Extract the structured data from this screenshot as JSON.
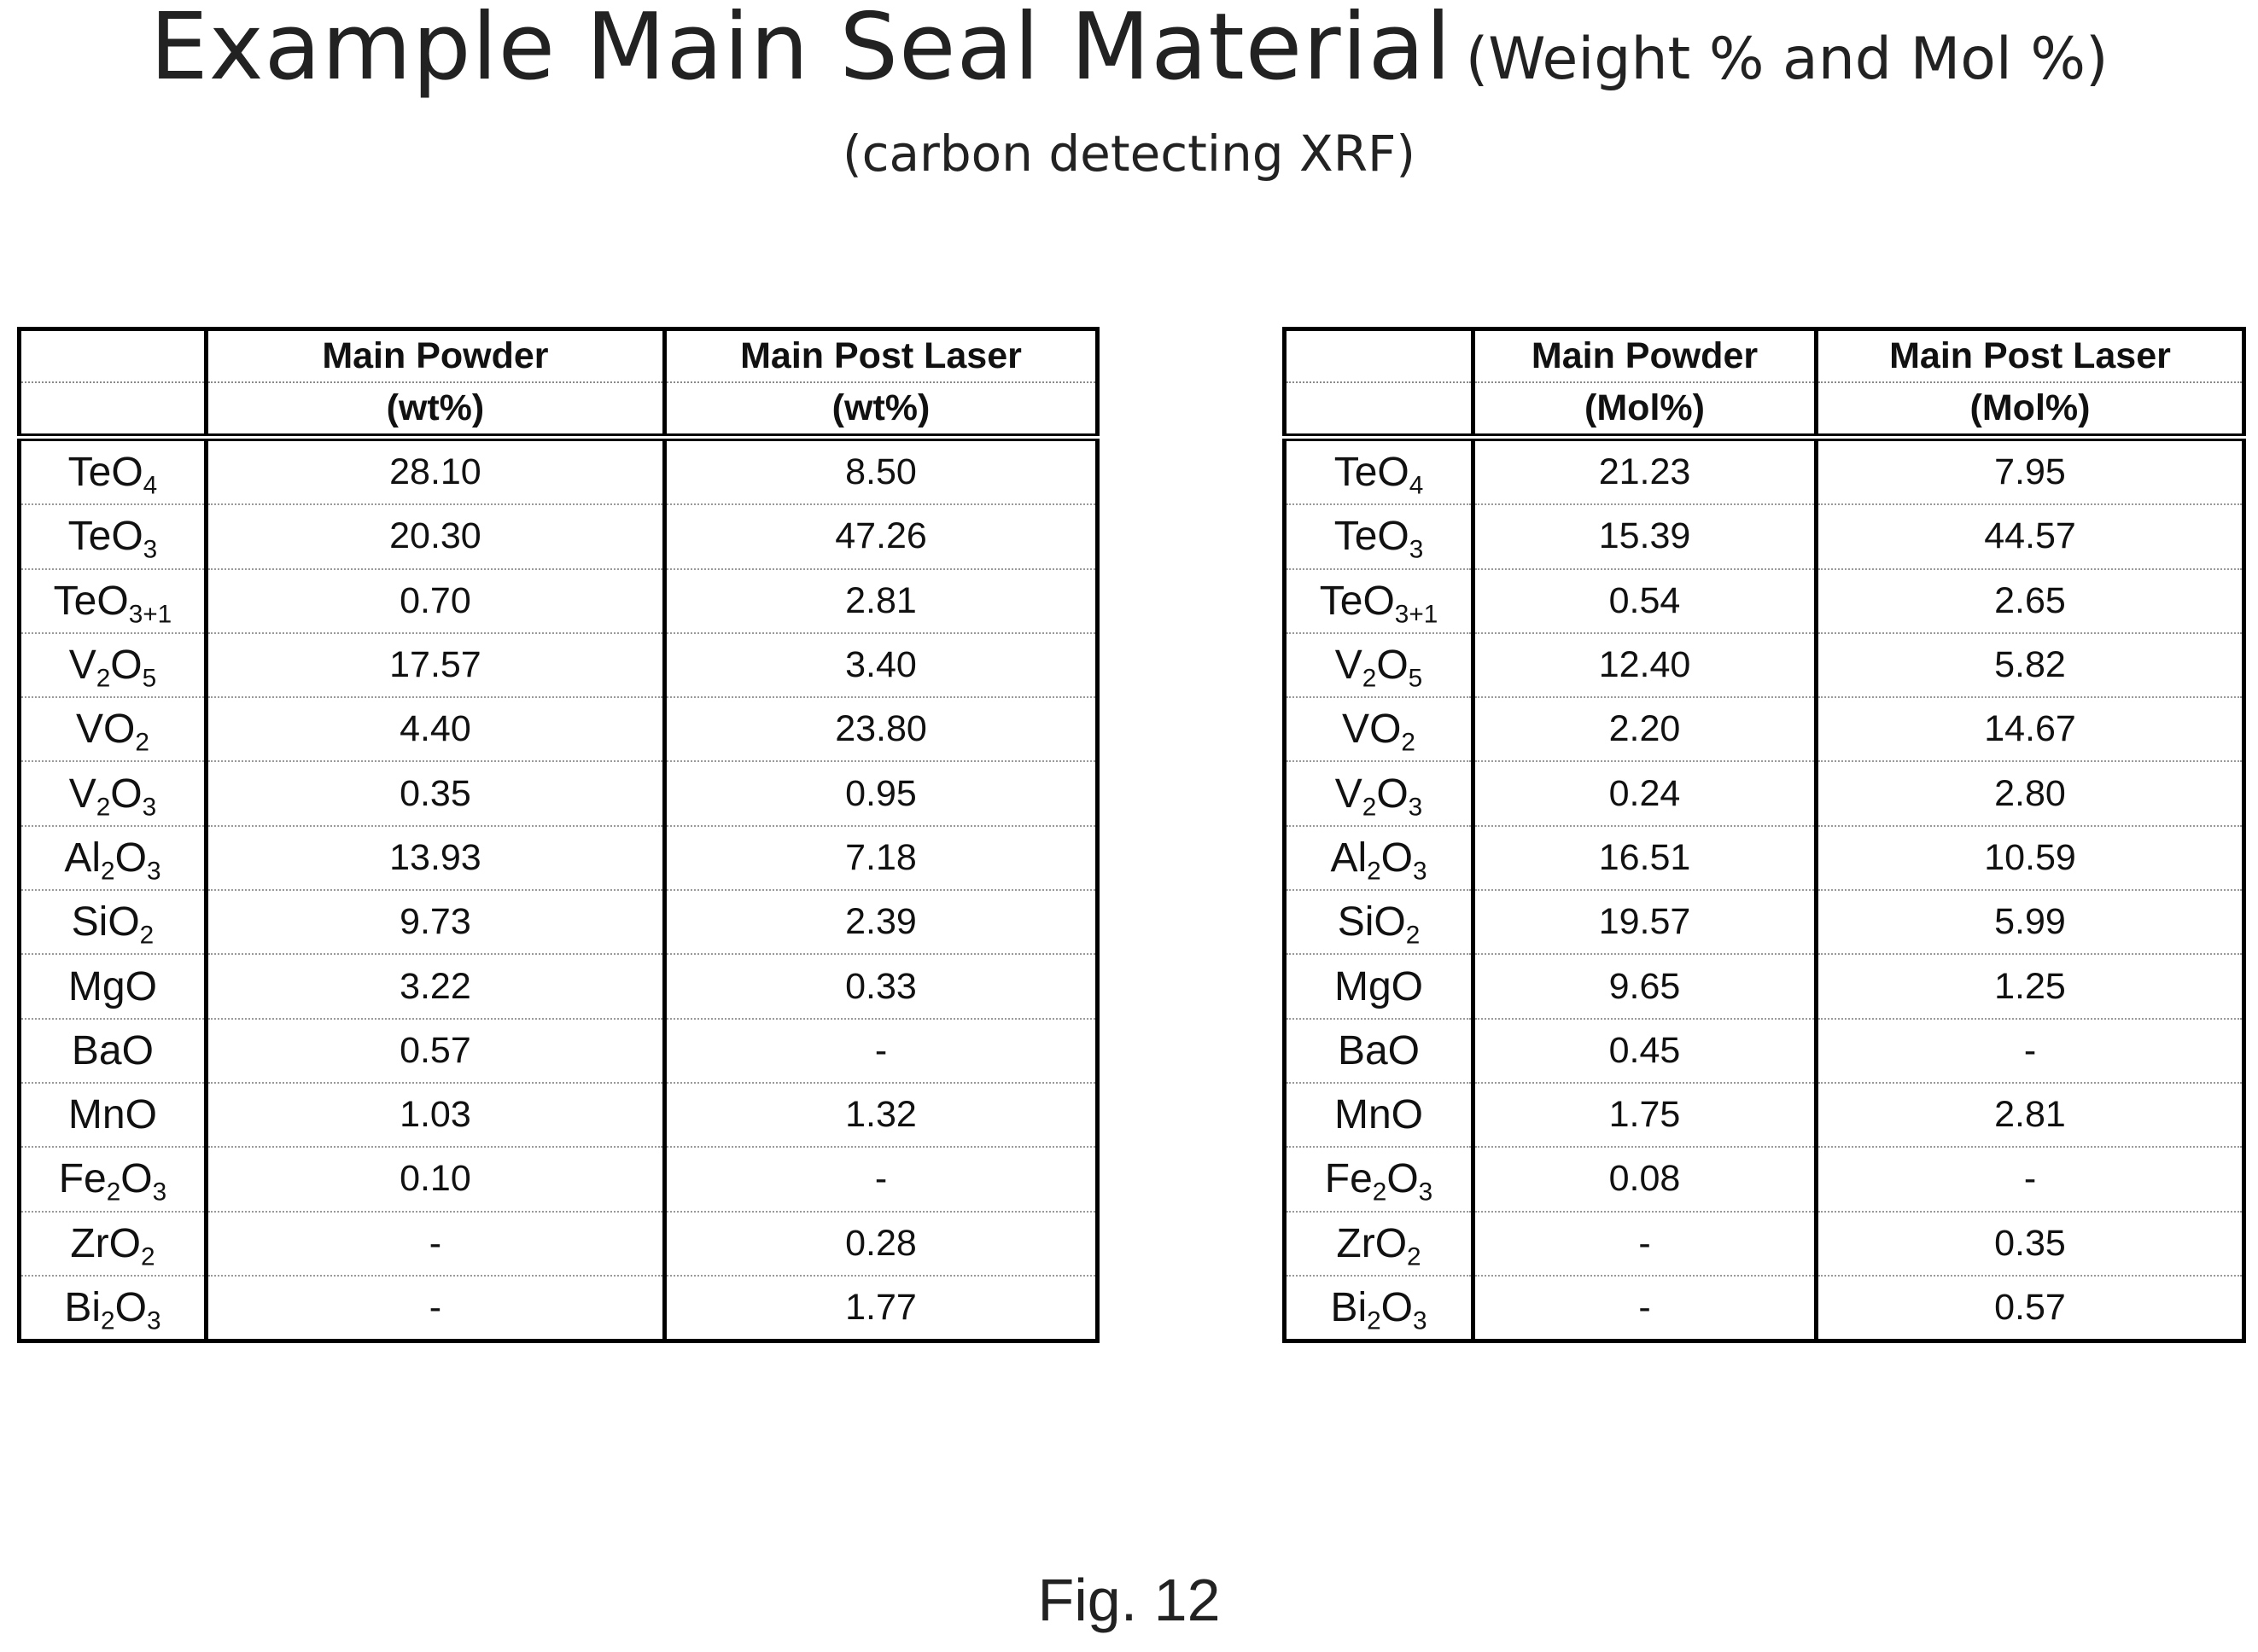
{
  "title": {
    "main": "Example Main Seal Material",
    "sub": "(Weight % and Mol %)"
  },
  "subtitle": "(carbon detecting XRF)",
  "weight_table": {
    "headers": [
      {
        "line1": "",
        "line2": ""
      },
      {
        "line1": "Main Powder",
        "line2": "(wt%)"
      },
      {
        "line1": "Main Post Laser",
        "line2": "(wt%)"
      }
    ],
    "rows": [
      {
        "compound": "TeO4",
        "powder": "28.10",
        "post_laser": "8.50"
      },
      {
        "compound": "TeO3",
        "powder": "20.30",
        "post_laser": "47.26"
      },
      {
        "compound": "TeO3+1",
        "powder": "0.70",
        "post_laser": "2.81"
      },
      {
        "compound": "V2O5",
        "powder": "17.57",
        "post_laser": "3.40"
      },
      {
        "compound": "VO2",
        "powder": "4.40",
        "post_laser": "23.80"
      },
      {
        "compound": "V2O3",
        "powder": "0.35",
        "post_laser": "0.95"
      },
      {
        "compound": "Al2O3",
        "powder": "13.93",
        "post_laser": "7.18"
      },
      {
        "compound": "SiO2",
        "powder": "9.73",
        "post_laser": "2.39"
      },
      {
        "compound": "MgO",
        "powder": "3.22",
        "post_laser": "0.33"
      },
      {
        "compound": "BaO",
        "powder": "0.57",
        "post_laser": "-"
      },
      {
        "compound": "MnO",
        "powder": "1.03",
        "post_laser": "1.32"
      },
      {
        "compound": "Fe2O3",
        "powder": "0.10",
        "post_laser": "-"
      },
      {
        "compound": "ZrO2",
        "powder": "-",
        "post_laser": "0.28"
      },
      {
        "compound": "Bi2O3",
        "powder": "-",
        "post_laser": "1.77"
      }
    ]
  },
  "mol_table": {
    "headers": [
      {
        "line1": "",
        "line2": ""
      },
      {
        "line1": "Main Powder",
        "line2": "(Mol%)"
      },
      {
        "line1": "Main Post Laser",
        "line2": "(Mol%)"
      }
    ],
    "rows": [
      {
        "compound": "TeO4",
        "powder": "21.23",
        "post_laser": "7.95"
      },
      {
        "compound": "TeO3",
        "powder": "15.39",
        "post_laser": "44.57"
      },
      {
        "compound": "TeO3+1",
        "powder": "0.54",
        "post_laser": "2.65"
      },
      {
        "compound": "V2O5",
        "powder": "12.40",
        "post_laser": "5.82"
      },
      {
        "compound": "VO2",
        "powder": "2.20",
        "post_laser": "14.67"
      },
      {
        "compound": "V2O3",
        "powder": "0.24",
        "post_laser": "2.80"
      },
      {
        "compound": "Al2O3",
        "powder": "16.51",
        "post_laser": "10.59"
      },
      {
        "compound": "SiO2",
        "powder": "19.57",
        "post_laser": "5.99"
      },
      {
        "compound": "MgO",
        "powder": "9.65",
        "post_laser": "1.25"
      },
      {
        "compound": "BaO",
        "powder": "0.45",
        "post_laser": "-"
      },
      {
        "compound": "MnO",
        "powder": "1.75",
        "post_laser": "2.81"
      },
      {
        "compound": "Fe2O3",
        "powder": "0.08",
        "post_laser": "-"
      },
      {
        "compound": "ZrO2",
        "powder": "-",
        "post_laser": "0.35"
      },
      {
        "compound": "Bi2O3",
        "powder": "-",
        "post_laser": "0.57"
      }
    ]
  },
  "figure_label": "Fig. 12"
}
